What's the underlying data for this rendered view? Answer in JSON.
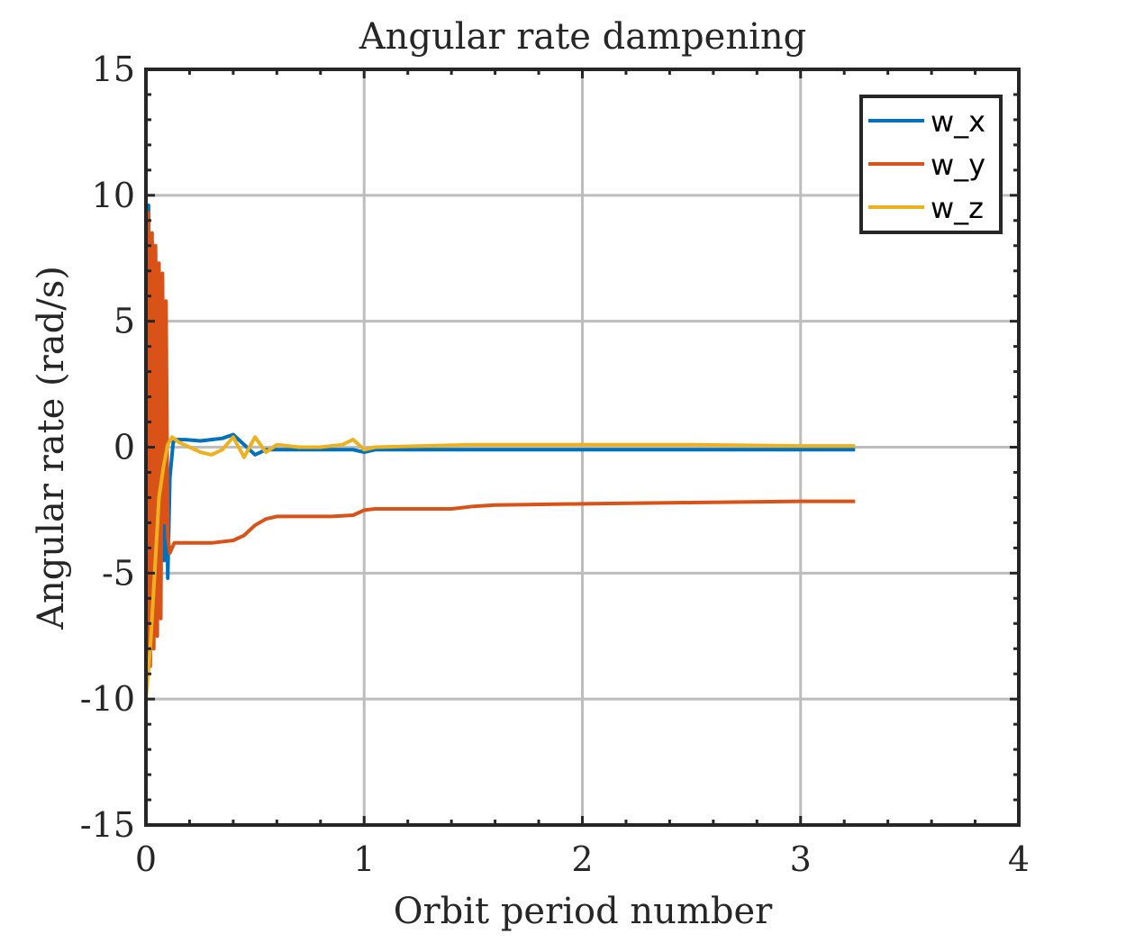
{
  "chart_data": {
    "type": "line",
    "title": "Angular rate dampening",
    "xlabel": "Orbit period number",
    "ylabel": "Angular rate (rad/s)",
    "xlim": [
      0,
      4
    ],
    "ylim": [
      -15,
      15
    ],
    "xticks": [
      0,
      1,
      2,
      3,
      4
    ],
    "xtick_labels": [
      "0",
      "1",
      "2",
      "3",
      "4"
    ],
    "yticks": [
      -15,
      -10,
      -5,
      0,
      5,
      10,
      15
    ],
    "ytick_labels": [
      "-15",
      "-10",
      "-5",
      "0",
      "5",
      "10",
      "15"
    ],
    "grid": true,
    "legend_position": "top-right",
    "series": [
      {
        "name": "w_x",
        "color": "#0072BD",
        "x": [
          0,
          0.005,
          0.012,
          0.02,
          0.028,
          0.036,
          0.044,
          0.052,
          0.06,
          0.068,
          0.076,
          0.084,
          0.092,
          0.1,
          0.11,
          0.125,
          0.14,
          0.18,
          0.25,
          0.3,
          0.35,
          0.4,
          0.45,
          0.5,
          0.55,
          0.6,
          0.8,
          0.95,
          1.0,
          1.05,
          1.5,
          2.0,
          2.5,
          3.0,
          3.25
        ],
        "y": [
          10,
          -9,
          9.6,
          -8.5,
          8.2,
          -7.2,
          7.4,
          -6.8,
          5.4,
          -5.6,
          6.3,
          -4.5,
          3.6,
          -5.2,
          -1.2,
          0.2,
          0.3,
          0.3,
          0.25,
          0.3,
          0.35,
          0.5,
          0.1,
          -0.3,
          -0.1,
          -0.1,
          -0.1,
          -0.1,
          -0.2,
          -0.1,
          -0.1,
          -0.1,
          -0.1,
          -0.1,
          -0.1
        ]
      },
      {
        "name": "w_y",
        "color": "#D95319",
        "x": [
          0,
          0.005,
          0.012,
          0.02,
          0.028,
          0.036,
          0.044,
          0.052,
          0.06,
          0.068,
          0.076,
          0.084,
          0.092,
          0.1,
          0.11,
          0.13,
          0.16,
          0.2,
          0.3,
          0.4,
          0.45,
          0.5,
          0.55,
          0.6,
          0.7,
          0.85,
          0.95,
          1.0,
          1.05,
          1.4,
          1.5,
          1.6,
          2.0,
          2.5,
          3.0,
          3.25
        ],
        "y": [
          9.6,
          -9.3,
          9.3,
          -8.7,
          8.5,
          -8.0,
          8.0,
          -7.5,
          7.3,
          -6.8,
          6.9,
          -3.0,
          5.8,
          -3.5,
          -4.2,
          -3.8,
          -3.8,
          -3.8,
          -3.8,
          -3.7,
          -3.5,
          -3.1,
          -2.85,
          -2.75,
          -2.75,
          -2.75,
          -2.7,
          -2.5,
          -2.45,
          -2.45,
          -2.35,
          -2.3,
          -2.25,
          -2.2,
          -2.15,
          -2.15
        ]
      },
      {
        "name": "w_z",
        "color": "#EDB120",
        "x": [
          0,
          0.02,
          0.04,
          0.06,
          0.08,
          0.1,
          0.12,
          0.15,
          0.2,
          0.25,
          0.3,
          0.35,
          0.4,
          0.45,
          0.5,
          0.55,
          0.6,
          0.7,
          0.8,
          0.9,
          0.95,
          1.0,
          1.05,
          1.5,
          2.0,
          2.5,
          3.0,
          3.25
        ],
        "y": [
          -10,
          -8.0,
          -5.0,
          -2.0,
          -0.8,
          0.1,
          0.4,
          0.2,
          0.0,
          -0.2,
          -0.3,
          -0.1,
          0.4,
          -0.4,
          0.4,
          -0.2,
          0.1,
          0.0,
          0.0,
          0.1,
          0.3,
          -0.1,
          0.0,
          0.1,
          0.1,
          0.1,
          0.05,
          0.05
        ]
      }
    ]
  }
}
